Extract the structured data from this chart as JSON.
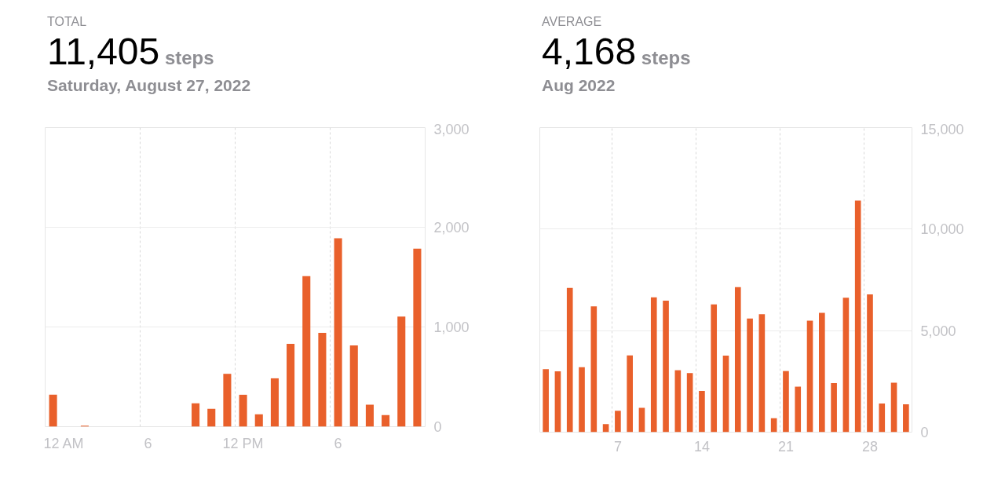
{
  "chart_data": [
    {
      "type": "bar",
      "title": "TOTAL",
      "subtitle": "Saturday, August 27, 2022",
      "annotations": [
        "11,405",
        "steps"
      ],
      "color": "#e9602b",
      "categories": [
        "12 AM",
        null,
        null,
        null,
        null,
        null,
        "6",
        null,
        null,
        null,
        null,
        null,
        "12 PM",
        null,
        null,
        null,
        null,
        null,
        "6",
        null,
        null,
        null,
        null,
        null
      ],
      "values": [
        320,
        0,
        10,
        0,
        0,
        0,
        0,
        0,
        0,
        235,
        180,
        530,
        320,
        125,
        485,
        830,
        1510,
        940,
        1890,
        815,
        220,
        117,
        1105,
        1785
      ],
      "ylim": [
        0,
        3000
      ],
      "yticks": [
        {
          "value": 0,
          "label": "0"
        },
        {
          "value": 1000,
          "label": "1,000"
        },
        {
          "value": 2000,
          "label": "2,000"
        },
        {
          "value": 3000,
          "label": "3,000"
        }
      ],
      "grid": true
    },
    {
      "type": "bar",
      "title": "AVERAGE",
      "subtitle": "Aug 2022",
      "annotations": [
        "4,168",
        "steps"
      ],
      "color": "#e9602b",
      "categories": [
        null,
        null,
        null,
        null,
        null,
        null,
        "7",
        null,
        null,
        null,
        null,
        null,
        null,
        "14",
        null,
        null,
        null,
        null,
        null,
        null,
        "21",
        null,
        null,
        null,
        null,
        null,
        null,
        "28",
        null,
        null,
        null
      ],
      "values": [
        3100,
        3000,
        7100,
        3200,
        6200,
        400,
        1050,
        3780,
        1200,
        6640,
        6480,
        3050,
        2910,
        2030,
        6290,
        3770,
        7140,
        5600,
        5810,
        690,
        3010,
        2240,
        5490,
        5880,
        2420,
        6620,
        11400,
        6780,
        1410,
        2440,
        1370
      ],
      "ylim": [
        0,
        15000
      ],
      "yticks": [
        {
          "value": 0,
          "label": "0"
        },
        {
          "value": 5000,
          "label": "5,000"
        },
        {
          "value": 10000,
          "label": "10,000"
        },
        {
          "value": 15000,
          "label": "15,000"
        }
      ],
      "grid": true
    }
  ]
}
